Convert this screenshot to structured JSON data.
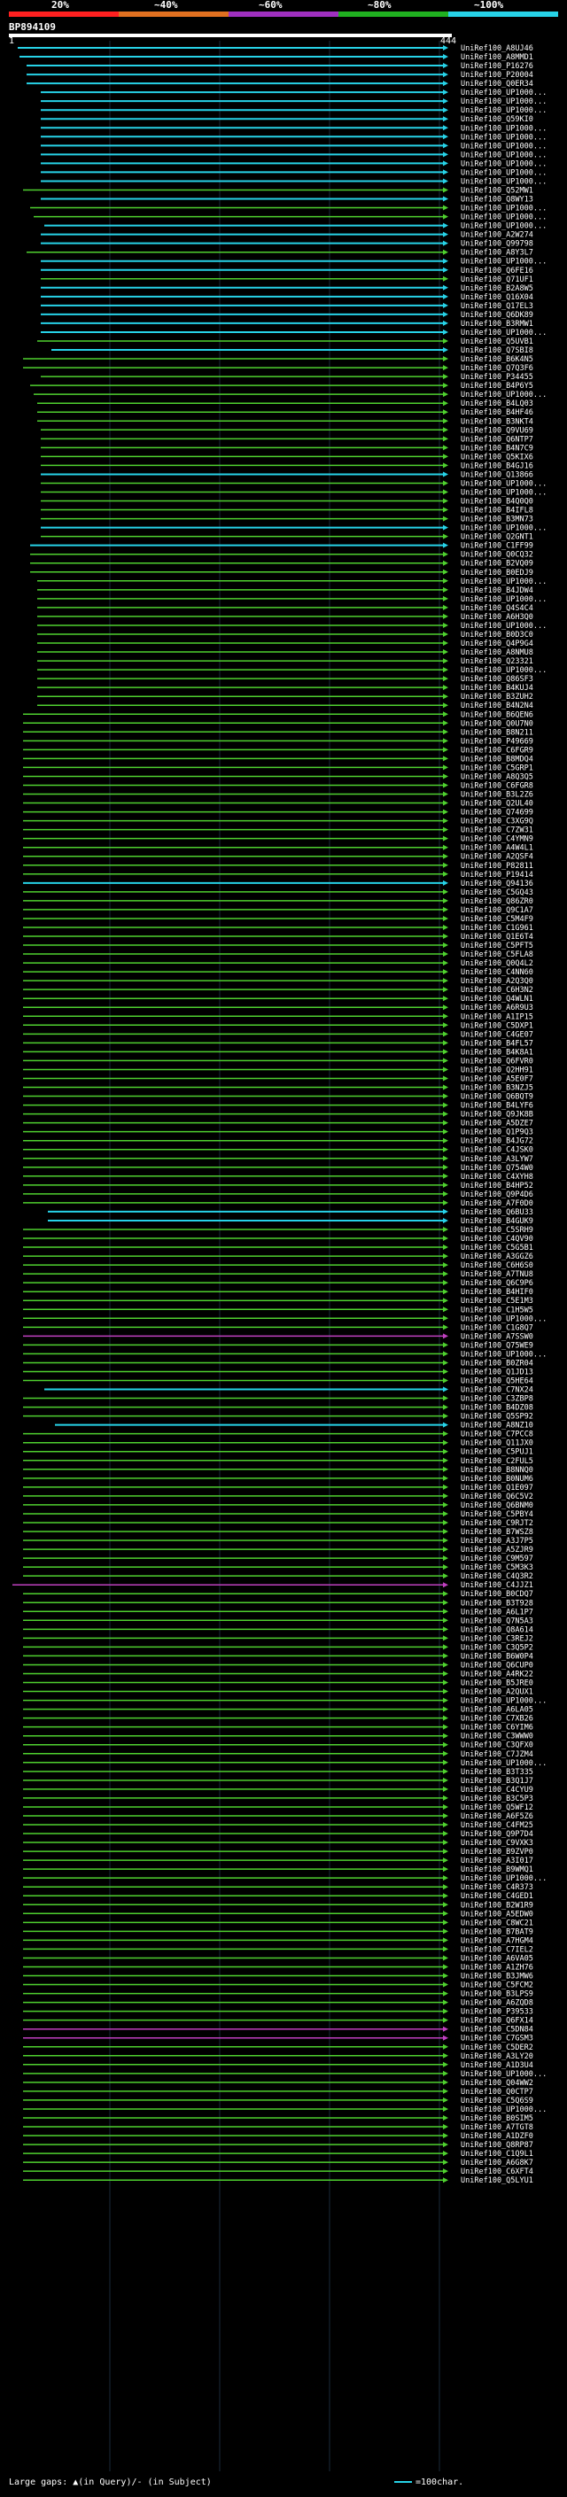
{
  "legend": {
    "labels": [
      "20%",
      "~40%",
      "~60%",
      "~80%",
      "~100%"
    ],
    "colors": [
      "#ff2020",
      "#e07020",
      "#a030c0",
      "#20b020",
      "#27d3e8"
    ]
  },
  "query": {
    "name": "BP894109",
    "start": "1",
    "end": "444"
  },
  "colors": {
    "cyan": "#27d3e8",
    "green": "#4fd12f",
    "magenta": "#c040c0",
    "pink": "#ff70ff"
  },
  "hits": [
    {
      "label": "UniRef100_A8UJ46",
      "c": "c",
      "s": 5
    },
    {
      "label": "UniRef100_A8MMD1",
      "c": "c",
      "s": 6
    },
    {
      "label": "UniRef100_P16276",
      "c": "c",
      "s": 10
    },
    {
      "label": "UniRef100_P20004",
      "c": "c",
      "s": 10
    },
    {
      "label": "UniRef100_Q0ER34",
      "c": "c",
      "s": 10
    },
    {
      "label": "UniRef100_UP1000...",
      "c": "c",
      "s": 18
    },
    {
      "label": "UniRef100_UP1000...",
      "c": "c",
      "s": 18
    },
    {
      "label": "UniRef100_UP1000...",
      "c": "c",
      "s": 18
    },
    {
      "label": "UniRef100_Q59KI0",
      "c": "c",
      "s": 18
    },
    {
      "label": "UniRef100_UP1000...",
      "c": "c",
      "s": 18
    },
    {
      "label": "UniRef100_UP1000...",
      "c": "c",
      "s": 18
    },
    {
      "label": "UniRef100_UP1000...",
      "c": "c",
      "s": 18
    },
    {
      "label": "UniRef100_UP1000...",
      "c": "c",
      "s": 18
    },
    {
      "label": "UniRef100_UP1000...",
      "c": "c",
      "s": 18
    },
    {
      "label": "UniRef100_UP1000...",
      "c": "c",
      "s": 18
    },
    {
      "label": "UniRef100_UP1000...",
      "c": "c",
      "s": 18
    },
    {
      "label": "UniRef100_Q52MW1",
      "c": "g",
      "s": 8
    },
    {
      "label": "UniRef100_Q8WY13",
      "c": "c",
      "s": 18
    },
    {
      "label": "UniRef100_UP1000...",
      "c": "g",
      "s": 12
    },
    {
      "label": "UniRef100_UP1000...",
      "c": "g",
      "s": 14
    },
    {
      "label": "UniRef100_UP1000...",
      "c": "c",
      "s": 20
    },
    {
      "label": "UniRef100_A2W274",
      "c": "c",
      "s": 18
    },
    {
      "label": "UniRef100_Q99798",
      "c": "c",
      "s": 18
    },
    {
      "label": "UniRef100_A8Y3L7",
      "c": "g",
      "s": 10
    },
    {
      "label": "UniRef100_UP1000...",
      "c": "c",
      "s": 18
    },
    {
      "label": "UniRef100_Q6FE16",
      "c": "c",
      "s": 18
    },
    {
      "label": "UniRef100_Q71UF1",
      "c": "g",
      "s": 18
    },
    {
      "label": "UniRef100_B2A8W5",
      "c": "c",
      "s": 18
    },
    {
      "label": "UniRef100_Q16X04",
      "c": "c",
      "s": 18
    },
    {
      "label": "UniRef100_Q17EL3",
      "c": "c",
      "s": 18
    },
    {
      "label": "UniRef100_Q6DK89",
      "c": "c",
      "s": 18
    },
    {
      "label": "UniRef100_B3RMW1",
      "c": "c",
      "s": 18
    },
    {
      "label": "UniRef100_UP1000...",
      "c": "c",
      "s": 18
    },
    {
      "label": "UniRef100_Q5UVB1",
      "c": "g",
      "s": 16
    },
    {
      "label": "UniRef100_Q7SBI8",
      "c": "c",
      "s": 24
    },
    {
      "label": "UniRef100_B6K4N5",
      "c": "g",
      "s": 8
    },
    {
      "label": "UniRef100_Q7Q3F6",
      "c": "g",
      "s": 8
    },
    {
      "label": "UniRef100_P34455",
      "c": "g",
      "s": 18
    },
    {
      "label": "UniRef100_B4P6Y5",
      "c": "g",
      "s": 12
    },
    {
      "label": "UniRef100_UP1000...",
      "c": "g",
      "s": 14
    },
    {
      "label": "UniRef100_B4LQ03",
      "c": "g",
      "s": 16
    },
    {
      "label": "UniRef100_B4HF46",
      "c": "g",
      "s": 16
    },
    {
      "label": "UniRef100_B3NKT4",
      "c": "g",
      "s": 16
    },
    {
      "label": "UniRef100_Q9VU69",
      "c": "g",
      "s": 18
    },
    {
      "label": "UniRef100_Q6NTP7",
      "c": "g",
      "s": 18
    },
    {
      "label": "UniRef100_B4N7C9",
      "c": "g",
      "s": 18
    },
    {
      "label": "UniRef100_Q5KIX6",
      "c": "g",
      "s": 18
    },
    {
      "label": "UniRef100_B4GJ16",
      "c": "g",
      "s": 18
    },
    {
      "label": "UniRef100_Q13866",
      "c": "c",
      "s": 18
    },
    {
      "label": "UniRef100_UP1000...",
      "c": "g",
      "s": 18
    },
    {
      "label": "UniRef100_UP1000...",
      "c": "g",
      "s": 18
    },
    {
      "label": "UniRef100_B4Q0Q0",
      "c": "g",
      "s": 18
    },
    {
      "label": "UniRef100_B4IFL8",
      "c": "g",
      "s": 18
    },
    {
      "label": "UniRef100_B3MN73",
      "c": "g",
      "s": 18
    },
    {
      "label": "UniRef100_UP1000...",
      "c": "c",
      "s": 18
    },
    {
      "label": "UniRef100_Q2GNT1",
      "c": "g",
      "s": 18
    },
    {
      "label": "UniRef100_C1FF99",
      "c": "c",
      "s": 12
    },
    {
      "label": "UniRef100_Q0CQ32",
      "c": "g",
      "s": 12
    },
    {
      "label": "UniRef100_B2VQ09",
      "c": "g",
      "s": 12
    },
    {
      "label": "UniRef100_B0EDJ9",
      "c": "g",
      "s": 12
    },
    {
      "label": "UniRef100_UP1000...",
      "c": "g",
      "s": 16
    },
    {
      "label": "UniRef100_B4JDW4",
      "c": "g",
      "s": 16
    },
    {
      "label": "UniRef100_UP1000...",
      "c": "g",
      "s": 16
    },
    {
      "label": "UniRef100_Q4S4C4",
      "c": "g",
      "s": 16
    },
    {
      "label": "UniRef100_A6H3Q0",
      "c": "g",
      "s": 16
    },
    {
      "label": "UniRef100_UP1000...",
      "c": "g",
      "s": 16
    },
    {
      "label": "UniRef100_B0D3C0",
      "c": "g",
      "s": 16
    },
    {
      "label": "UniRef100_Q4P9G4",
      "c": "g",
      "s": 16
    },
    {
      "label": "UniRef100_A8NMU8",
      "c": "g",
      "s": 16
    },
    {
      "label": "UniRef100_Q23321",
      "c": "g",
      "s": 16
    },
    {
      "label": "UniRef100_UP1000...",
      "c": "g",
      "s": 16
    },
    {
      "label": "UniRef100_Q86SF3",
      "c": "g",
      "s": 16
    },
    {
      "label": "UniRef100_B4KUJ4",
      "c": "g",
      "s": 16
    },
    {
      "label": "UniRef100_B3ZUH2",
      "c": "g",
      "s": 16
    },
    {
      "label": "UniRef100_B4N2N4",
      "c": "g",
      "s": 16
    },
    {
      "label": "UniRef100_B6QEN6",
      "c": "g",
      "s": 8
    },
    {
      "label": "UniRef100_Q0U7N0",
      "c": "g",
      "s": 8
    },
    {
      "label": "UniRef100_B8N211",
      "c": "g",
      "s": 8
    },
    {
      "label": "UniRef100_P49669",
      "c": "g",
      "s": 8
    },
    {
      "label": "UniRef100_C6FGR9",
      "c": "g",
      "s": 8
    },
    {
      "label": "UniRef100_B8MDQ4",
      "c": "g",
      "s": 8
    },
    {
      "label": "UniRef100_C5GRP1",
      "c": "g",
      "s": 8
    },
    {
      "label": "UniRef100_A8Q3Q5",
      "c": "g",
      "s": 8
    },
    {
      "label": "UniRef100_C6FGR8",
      "c": "g",
      "s": 8
    },
    {
      "label": "UniRef100_B3L2Z6",
      "c": "g",
      "s": 8
    },
    {
      "label": "UniRef100_Q2UL40",
      "c": "g",
      "s": 8
    },
    {
      "label": "UniRef100_Q74699",
      "c": "g",
      "s": 8
    },
    {
      "label": "UniRef100_C3XG9Q",
      "c": "g",
      "s": 8
    },
    {
      "label": "UniRef100_C7ZW31",
      "c": "g",
      "s": 8
    },
    {
      "label": "UniRef100_C4YMN9",
      "c": "g",
      "s": 8
    },
    {
      "label": "UniRef100_A4W4L1",
      "c": "g",
      "s": 8
    },
    {
      "label": "UniRef100_A2QSF4",
      "c": "g",
      "s": 8
    },
    {
      "label": "UniRef100_P82811",
      "c": "g",
      "s": 8
    },
    {
      "label": "UniRef100_P19414",
      "c": "g",
      "s": 8
    },
    {
      "label": "UniRef100_Q94136",
      "c": "c",
      "s": 8
    },
    {
      "label": "UniRef100_C5GQ43",
      "c": "g",
      "s": 8
    },
    {
      "label": "UniRef100_Q86ZR0",
      "c": "g",
      "s": 8
    },
    {
      "label": "UniRef100_Q9C1A7",
      "c": "g",
      "s": 8
    },
    {
      "label": "UniRef100_C5M4F9",
      "c": "g",
      "s": 8
    },
    {
      "label": "UniRef100_C1G961",
      "c": "g",
      "s": 8
    },
    {
      "label": "UniRef100_Q1E6T4",
      "c": "g",
      "s": 8
    },
    {
      "label": "UniRef100_C5PFT5",
      "c": "g",
      "s": 8
    },
    {
      "label": "UniRef100_C5FLA8",
      "c": "g",
      "s": 8
    },
    {
      "label": "UniRef100_Q0Q4L2",
      "c": "g",
      "s": 8
    },
    {
      "label": "UniRef100_C4NN60",
      "c": "g",
      "s": 8
    },
    {
      "label": "UniRef100_A2Q3Q0",
      "c": "g",
      "s": 8
    },
    {
      "label": "UniRef100_C6H3N2",
      "c": "g",
      "s": 8
    },
    {
      "label": "UniRef100_Q4WLN1",
      "c": "g",
      "s": 8
    },
    {
      "label": "UniRef100_A6R9U3",
      "c": "g",
      "s": 8
    },
    {
      "label": "UniRef100_A1IP15",
      "c": "g",
      "s": 8
    },
    {
      "label": "UniRef100_C5DXP1",
      "c": "g",
      "s": 8
    },
    {
      "label": "UniRef100_C4GE07",
      "c": "g",
      "s": 8
    },
    {
      "label": "UniRef100_B4FL57",
      "c": "g",
      "s": 8
    },
    {
      "label": "UniRef100_B4K8A1",
      "c": "g",
      "s": 8
    },
    {
      "label": "UniRef100_Q6FVR0",
      "c": "g",
      "s": 8
    },
    {
      "label": "UniRef100_Q2HH91",
      "c": "g",
      "s": 8
    },
    {
      "label": "UniRef100_A5E0F7",
      "c": "g",
      "s": 8
    },
    {
      "label": "UniRef100_B3NZJ5",
      "c": "g",
      "s": 8
    },
    {
      "label": "UniRef100_Q6BQT9",
      "c": "g",
      "s": 8
    },
    {
      "label": "UniRef100_B4LYF6",
      "c": "g",
      "s": 8
    },
    {
      "label": "UniRef100_Q9JK8B",
      "c": "g",
      "s": 8
    },
    {
      "label": "UniRef100_A5DZE7",
      "c": "g",
      "s": 8
    },
    {
      "label": "UniRef100_Q1P9Q3",
      "c": "g",
      "s": 8
    },
    {
      "label": "UniRef100_B4JG72",
      "c": "g",
      "s": 8
    },
    {
      "label": "UniRef100_C4JSK0",
      "c": "g",
      "s": 8
    },
    {
      "label": "UniRef100_A3LYW7",
      "c": "g",
      "s": 8
    },
    {
      "label": "UniRef100_Q754W0",
      "c": "g",
      "s": 8
    },
    {
      "label": "UniRef100_C4XYH8",
      "c": "g",
      "s": 8
    },
    {
      "label": "UniRef100_B4HP52",
      "c": "g",
      "s": 8
    },
    {
      "label": "UniRef100_Q9P4D6",
      "c": "g",
      "s": 8
    },
    {
      "label": "UniRef100_A7F0D0",
      "c": "g",
      "s": 8
    },
    {
      "label": "UniRef100_Q6BU33",
      "c": "c",
      "s": 22
    },
    {
      "label": "UniRef100_B4GUK9",
      "c": "c",
      "s": 22
    },
    {
      "label": "UniRef100_C5SRH9",
      "c": "g",
      "s": 8
    },
    {
      "label": "UniRef100_C4QV90",
      "c": "g",
      "s": 8
    },
    {
      "label": "UniRef100_C5G5B1",
      "c": "g",
      "s": 8
    },
    {
      "label": "UniRef100_A3GGZ6",
      "c": "g",
      "s": 8
    },
    {
      "label": "UniRef100_C6H6S0",
      "c": "g",
      "s": 8
    },
    {
      "label": "UniRef100_A7TNU8",
      "c": "g",
      "s": 8
    },
    {
      "label": "UniRef100_Q6C9P6",
      "c": "g",
      "s": 8
    },
    {
      "label": "UniRef100_B4HIF0",
      "c": "g",
      "s": 8
    },
    {
      "label": "UniRef100_C5E1M3",
      "c": "g",
      "s": 8
    },
    {
      "label": "UniRef100_C1H5W5",
      "c": "g",
      "s": 8
    },
    {
      "label": "UniRef100_UP1000...",
      "c": "g",
      "s": 8
    },
    {
      "label": "UniRef100_C1G8Q7",
      "c": "g",
      "s": 8
    },
    {
      "label": "UniRef100_A7SSW0",
      "c": "m",
      "s": 8
    },
    {
      "label": "UniRef100_Q75WE9",
      "c": "g",
      "s": 8
    },
    {
      "label": "UniRef100_UP1000...",
      "c": "g",
      "s": 8
    },
    {
      "label": "UniRef100_B0ZR04",
      "c": "g",
      "s": 8
    },
    {
      "label": "UniRef100_Q1JD13",
      "c": "g",
      "s": 8
    },
    {
      "label": "UniRef100_Q5HE64",
      "c": "g",
      "s": 8
    },
    {
      "label": "UniRef100_C7NX24",
      "c": "c",
      "s": 20
    },
    {
      "label": "UniRef100_C3ZBP8",
      "c": "g",
      "s": 8
    },
    {
      "label": "UniRef100_B4DZ08",
      "c": "g",
      "s": 8
    },
    {
      "label": "UniRef100_Q5SP92",
      "c": "g",
      "s": 8
    },
    {
      "label": "UniRef100_A8NZ10",
      "c": "c",
      "s": 26
    },
    {
      "label": "UniRef100_C7PCC8",
      "c": "g",
      "s": 8
    },
    {
      "label": "UniRef100_Q11JX0",
      "c": "g",
      "s": 8
    },
    {
      "label": "UniRef100_C5PUJ1",
      "c": "g",
      "s": 8
    },
    {
      "label": "UniRef100_C2FUL5",
      "c": "g",
      "s": 8
    },
    {
      "label": "UniRef100_B8NNQ0",
      "c": "g",
      "s": 8
    },
    {
      "label": "UniRef100_B0NUM6",
      "c": "g",
      "s": 8
    },
    {
      "label": "UniRef100_Q1E097",
      "c": "g",
      "s": 8
    },
    {
      "label": "UniRef100_Q6C5V2",
      "c": "g",
      "s": 8
    },
    {
      "label": "UniRef100_Q6BNM0",
      "c": "g",
      "s": 8
    },
    {
      "label": "UniRef100_C5PBY4",
      "c": "g",
      "s": 8
    },
    {
      "label": "UniRef100_C9RJT2",
      "c": "g",
      "s": 8
    },
    {
      "label": "UniRef100_B7WSZ8",
      "c": "g",
      "s": 8
    },
    {
      "label": "UniRef100_A3J7P5",
      "c": "g",
      "s": 8
    },
    {
      "label": "UniRef100_A5ZJR9",
      "c": "g",
      "s": 8
    },
    {
      "label": "UniRef100_C9M597",
      "c": "g",
      "s": 8
    },
    {
      "label": "UniRef100_C5M3K3",
      "c": "g",
      "s": 8
    },
    {
      "label": "UniRef100_C4Q3R2",
      "c": "g",
      "s": 8
    },
    {
      "label": "UniRef100_C4JJZ1",
      "c": "m",
      "s": 2
    },
    {
      "label": "UniRef100_B0CDQ7",
      "c": "g",
      "s": 8
    },
    {
      "label": "UniRef100_B3T928",
      "g": "g",
      "c": "g",
      "s": 8
    },
    {
      "label": "UniRef100_A6L1P7",
      "c": "g",
      "s": 8
    },
    {
      "label": "UniRef100_Q7N5A3",
      "c": "g",
      "s": 8
    },
    {
      "label": "UniRef100_Q8A614",
      "c": "g",
      "s": 8
    },
    {
      "label": "UniRef100_C3REJ2",
      "c": "g",
      "s": 8
    },
    {
      "label": "UniRef100_C3Q5P2",
      "c": "g",
      "s": 8
    },
    {
      "label": "UniRef100_B6W0P4",
      "c": "g",
      "s": 8
    },
    {
      "label": "UniRef100_Q6CUP0",
      "c": "g",
      "s": 8
    },
    {
      "label": "UniRef100_A4RK22",
      "c": "g",
      "s": 8
    },
    {
      "label": "UniRef100_B5JRE0",
      "c": "g",
      "s": 8
    },
    {
      "label": "UniRef100_A2QUX1",
      "c": "g",
      "s": 8
    },
    {
      "label": "UniRef100_UP1000...",
      "c": "g",
      "s": 8
    },
    {
      "label": "UniRef100_A6LA05",
      "c": "g",
      "s": 8
    },
    {
      "label": "UniRef100_C7XB26",
      "c": "g",
      "s": 8
    },
    {
      "label": "UniRef100_C6YIM6",
      "c": "g",
      "s": 8
    },
    {
      "label": "UniRef100_C3WWW0",
      "c": "g",
      "s": 8
    },
    {
      "label": "UniRef100_C3QFX0",
      "c": "g",
      "s": 8
    },
    {
      "label": "UniRef100_C7JZM4",
      "c": "g",
      "s": 8
    },
    {
      "label": "UniRef100_UP1000...",
      "c": "g",
      "s": 8
    },
    {
      "label": "UniRef100_B3T335",
      "c": "g",
      "s": 8
    },
    {
      "label": "UniRef100_B3Q1J7",
      "c": "g",
      "s": 8
    },
    {
      "label": "UniRef100_C4CYU9",
      "c": "g",
      "s": 8
    },
    {
      "label": "UniRef100_B3C5P3",
      "c": "g",
      "s": 8
    },
    {
      "label": "UniRef100_Q5WF12",
      "c": "g",
      "s": 8
    },
    {
      "label": "UniRef100_A6F5Z6",
      "c": "g",
      "s": 8
    },
    {
      "label": "UniRef100_C4FM25",
      "c": "g",
      "s": 8
    },
    {
      "label": "UniRef100_Q9P7D4",
      "c": "g",
      "s": 8
    },
    {
      "label": "UniRef100_C9VXK3",
      "c": "g",
      "s": 8
    },
    {
      "label": "UniRef100_B9ZVP0",
      "c": "g",
      "s": 8
    },
    {
      "label": "UniRef100_A3I017",
      "c": "g",
      "s": 8
    },
    {
      "label": "UniRef100_B9WMQ1",
      "c": "g",
      "s": 8
    },
    {
      "label": "UniRef100_UP1000...",
      "c": "g",
      "s": 8
    },
    {
      "label": "UniRef100_C4R373",
      "c": "g",
      "s": 8
    },
    {
      "label": "UniRef100_C4GED1",
      "c": "g",
      "s": 8
    },
    {
      "label": "UniRef100_B2W1R9",
      "c": "g",
      "s": 8
    },
    {
      "label": "UniRef100_A5EDW0",
      "c": "g",
      "s": 8
    },
    {
      "label": "UniRef100_C8WC21",
      "c": "g",
      "s": 8
    },
    {
      "label": "UniRef100_B7BAT9",
      "c": "g",
      "s": 8
    },
    {
      "label": "UniRef100_A7HGM4",
      "c": "g",
      "s": 8
    },
    {
      "label": "UniRef100_C7IEL2",
      "c": "g",
      "s": 8
    },
    {
      "label": "UniRef100_A6VA05",
      "c": "g",
      "s": 8
    },
    {
      "label": "UniRef100_A1ZH76",
      "c": "g",
      "s": 8
    },
    {
      "label": "UniRef100_B3JMW6",
      "c": "g",
      "s": 8
    },
    {
      "label": "UniRef100_C5FCM2",
      "c": "g",
      "s": 8
    },
    {
      "label": "UniRef100_B3LPS9",
      "c": "g",
      "s": 8
    },
    {
      "label": "UniRef100_A6ZQD8",
      "c": "g",
      "s": 8
    },
    {
      "label": "UniRef100_P39533",
      "c": "g",
      "s": 8
    },
    {
      "label": "UniRef100_Q6FX14",
      "c": "g",
      "s": 8
    },
    {
      "label": "UniRef100_C5DN84",
      "c": "m",
      "s": 8
    },
    {
      "label": "UniRef100_C7GSM3",
      "c": "m",
      "s": 8
    },
    {
      "label": "UniRef100_C5DER2",
      "c": "g",
      "s": 8
    },
    {
      "label": "UniRef100_A3LY20",
      "c": "g",
      "s": 8
    },
    {
      "label": "UniRef100_A1D3U4",
      "c": "g",
      "s": 8
    },
    {
      "label": "UniRef100_UP1000...",
      "c": "g",
      "s": 8
    },
    {
      "label": "UniRef100_Q04WW2",
      "c": "g",
      "s": 8
    },
    {
      "label": "UniRef100_Q0CTP7",
      "c": "g",
      "s": 8
    },
    {
      "label": "UniRef100_C5Q6S9",
      "c": "g",
      "s": 8
    },
    {
      "label": "UniRef100_UP1000...",
      "c": "g",
      "s": 8
    },
    {
      "label": "UniRef100_B0SIM5",
      "c": "g",
      "s": 8
    },
    {
      "label": "UniRef100_A7TGT8",
      "c": "g",
      "s": 8
    },
    {
      "label": "UniRef100_A1DZF0",
      "c": "g",
      "s": 8
    },
    {
      "label": "UniRef100_Q8RP87",
      "c": "g",
      "s": 8
    },
    {
      "label": "UniRef100_C1Q9L1",
      "c": "g",
      "s": 8
    },
    {
      "label": "UniRef100_A6G8K7",
      "c": "g",
      "s": 8
    },
    {
      "label": "UniRef100_C6XFT4",
      "c": "g",
      "s": 8
    },
    {
      "label": "UniRef100_Q5LYU1",
      "c": "g",
      "s": 8
    }
  ],
  "footer": {
    "gaps_text": "Large gaps: ▲(in Query)/- (in Subject)",
    "scale_text": "=100char."
  }
}
